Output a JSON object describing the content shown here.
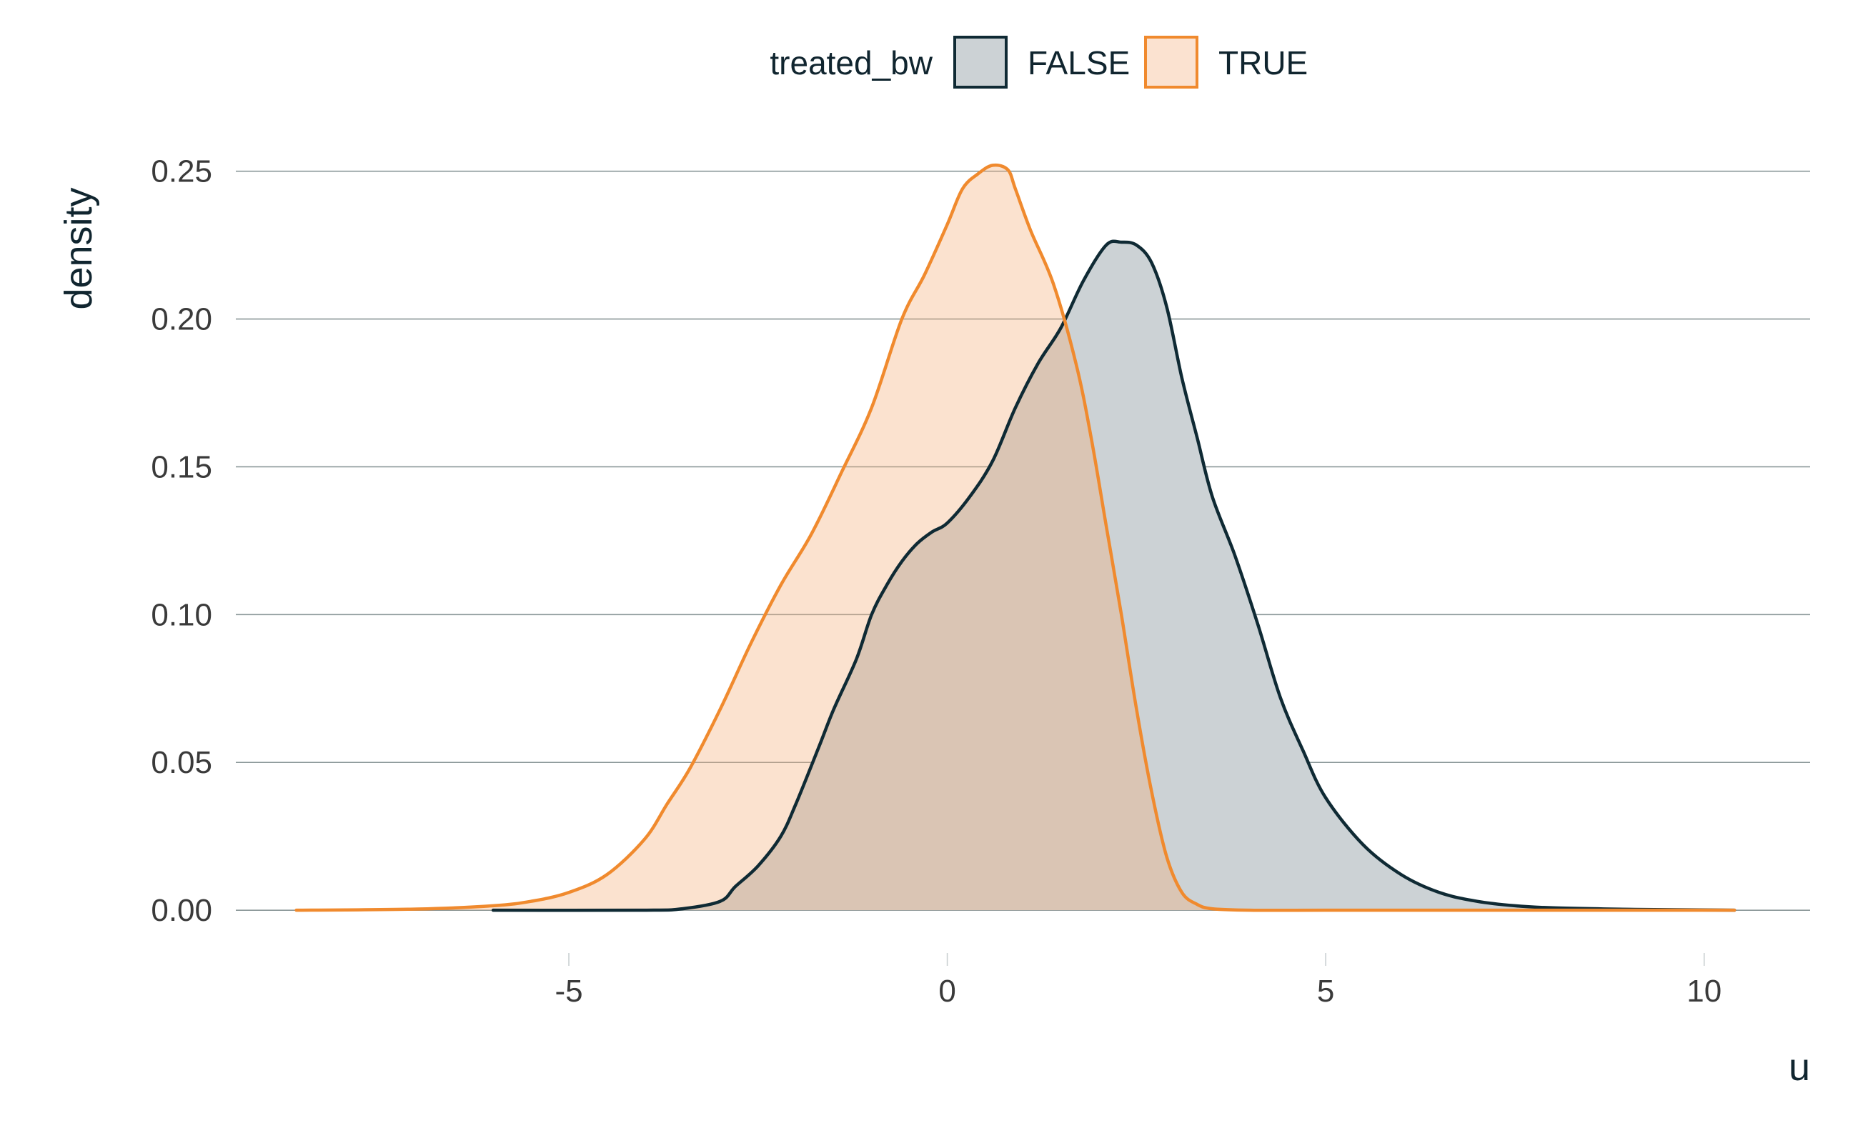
{
  "chart_data": {
    "type": "area",
    "xlabel": "u",
    "ylabel": "density",
    "xlim": [
      -9.4,
      11.4
    ],
    "ylim": [
      -0.0135,
      0.262
    ],
    "x_ticks": [
      -5,
      0,
      5,
      10
    ],
    "x_tick_labels": [
      "-5",
      "0",
      "5",
      "10"
    ],
    "y_ticks": [
      0.0,
      0.05,
      0.1,
      0.15,
      0.2,
      0.25
    ],
    "y_tick_labels": [
      "0.00",
      "0.05",
      "0.10",
      "0.15",
      "0.20",
      "0.25"
    ],
    "grid": "horizontal major lines",
    "legend": {
      "title": "treated_bw",
      "placement": "top-center",
      "entries": [
        "FALSE",
        "TRUE"
      ]
    },
    "series": [
      {
        "name": "FALSE",
        "line_color": "#0f2a34",
        "fill_color": "#ccd2d5",
        "fill_opacity": 1.0,
        "x": [
          -6.0,
          -4.0,
          -3.5,
          -3.0,
          -2.8,
          -2.5,
          -2.2,
          -2.0,
          -1.7,
          -1.5,
          -1.2,
          -1.0,
          -0.8,
          -0.6,
          -0.4,
          -0.2,
          0.0,
          0.3,
          0.6,
          0.9,
          1.2,
          1.5,
          1.8,
          2.1,
          2.3,
          2.5,
          2.7,
          2.9,
          3.1,
          3.3,
          3.5,
          3.8,
          4.1,
          4.4,
          4.7,
          5.0,
          5.5,
          6.0,
          6.5,
          7.0,
          7.5,
          8.0,
          9.0,
          10.4
        ],
        "y": [
          0.0,
          0.0,
          0.0005,
          0.003,
          0.008,
          0.015,
          0.025,
          0.036,
          0.055,
          0.068,
          0.085,
          0.1,
          0.11,
          0.118,
          0.124,
          0.128,
          0.131,
          0.14,
          0.152,
          0.17,
          0.185,
          0.197,
          0.213,
          0.225,
          0.226,
          0.225,
          0.219,
          0.204,
          0.18,
          0.16,
          0.14,
          0.12,
          0.097,
          0.072,
          0.054,
          0.038,
          0.022,
          0.012,
          0.006,
          0.003,
          0.0015,
          0.0008,
          0.0003,
          0.0
        ]
      },
      {
        "name": "TRUE",
        "line_color": "#f08a2e",
        "fill_color": "#f5b07a",
        "fill_opacity": 0.36,
        "x": [
          -8.6,
          -7.0,
          -6.0,
          -5.5,
          -5.0,
          -4.5,
          -4.0,
          -3.7,
          -3.4,
          -3.0,
          -2.6,
          -2.2,
          -1.8,
          -1.4,
          -1.0,
          -0.6,
          -0.3,
          0.0,
          0.2,
          0.4,
          0.6,
          0.8,
          0.9,
          1.1,
          1.4,
          1.7,
          1.9,
          2.1,
          2.3,
          2.5,
          2.7,
          2.9,
          3.1,
          3.3,
          3.5,
          4.0,
          5.0,
          7.0,
          9.0,
          10.4
        ],
        "y": [
          0.0,
          0.0004,
          0.0015,
          0.003,
          0.006,
          0.012,
          0.024,
          0.036,
          0.048,
          0.068,
          0.09,
          0.11,
          0.127,
          0.148,
          0.17,
          0.2,
          0.215,
          0.232,
          0.244,
          0.249,
          0.252,
          0.2505,
          0.244,
          0.23,
          0.212,
          0.185,
          0.16,
          0.13,
          0.1,
          0.068,
          0.04,
          0.018,
          0.006,
          0.002,
          0.0005,
          0.0,
          0.0,
          0.0,
          0.0,
          0.0
        ]
      }
    ]
  }
}
